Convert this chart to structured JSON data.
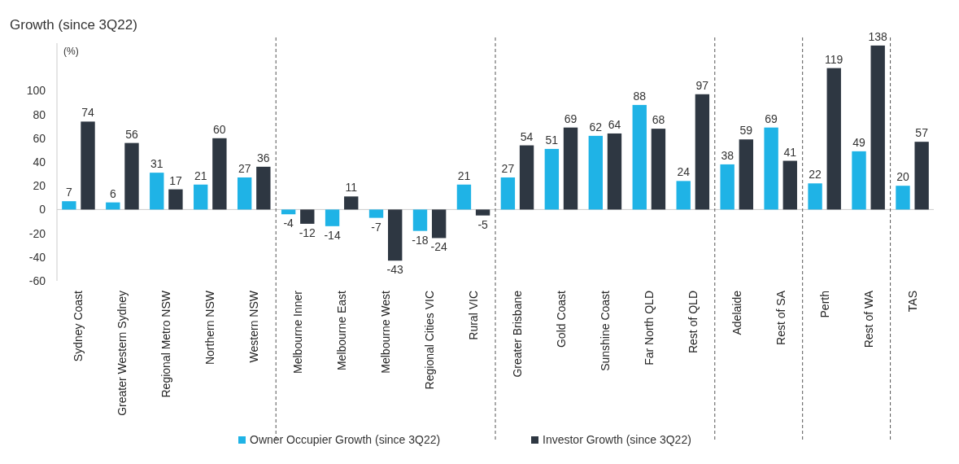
{
  "chart_data": {
    "type": "bar",
    "title": "Growth (since 3Q22)",
    "ylabel": "(%)",
    "categories": [
      "Sydney Coast",
      "Greater Western Sydney",
      "Regional Metro NSW",
      "Northern NSW",
      "Western NSW",
      "Melbourne Inner",
      "Melbourne East",
      "Melbourne West",
      "Regional Cities VIC",
      "Rural VIC",
      "Greater Brisbane",
      "Gold Coast",
      "Sunshine Coast",
      "Far North QLD",
      "Rest of QLD",
      "Adelaide",
      "Rest of SA",
      "Perth",
      "Rest of WA",
      "TAS"
    ],
    "series": [
      {
        "name": "Owner Occupier Growth (since 3Q22)",
        "color": "#1fb3e6",
        "values": [
          7,
          6,
          31,
          21,
          27,
          -4,
          -14,
          -7,
          -18,
          21,
          27,
          51,
          62,
          88,
          24,
          38,
          69,
          22,
          49,
          20
        ]
      },
      {
        "name": "Investor Growth (since 3Q22)",
        "color": "#2e3742",
        "values": [
          74,
          56,
          17,
          60,
          36,
          -12,
          11,
          -43,
          -24,
          -5,
          54,
          69,
          64,
          68,
          97,
          59,
          41,
          119,
          138,
          57
        ]
      }
    ],
    "ylim": [
      -60,
      140
    ],
    "yticks": [
      -60,
      -40,
      -20,
      0,
      20,
      40,
      60,
      80,
      100
    ],
    "grid": false,
    "legend": "bottom",
    "data_labels": true
  }
}
